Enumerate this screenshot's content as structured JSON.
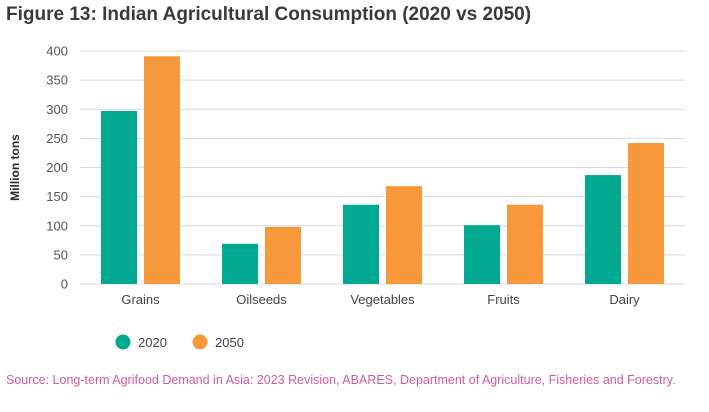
{
  "title": "Figure 13: Indian Agricultural Consumption (2020 vs 2050)",
  "source": "Source: Long-term Agrifood Demand in Asia: 2023 Revision, ABARES, Department of Agriculture, Fisheries and Forestry.",
  "colors": {
    "2020": "#00a98f",
    "2050": "#f7993a",
    "grid": "#d9d9d9"
  },
  "chart_data": {
    "type": "bar",
    "title": "Figure 13: Indian Agricultural Consumption (2020 vs 2050)",
    "xlabel": "",
    "ylabel": "Million tons",
    "ylim": [
      0,
      400
    ],
    "yticks": [
      0,
      50,
      100,
      150,
      200,
      250,
      300,
      350,
      400
    ],
    "grid": true,
    "legend_position": "bottom-left",
    "categories": [
      "Grains",
      "Oilseeds",
      "Vegetables",
      "Fruits",
      "Dairy"
    ],
    "series": [
      {
        "name": "2020",
        "values": [
          297,
          69,
          136,
          101,
          187
        ]
      },
      {
        "name": "2050",
        "values": [
          391,
          98,
          168,
          136,
          242
        ]
      }
    ]
  }
}
